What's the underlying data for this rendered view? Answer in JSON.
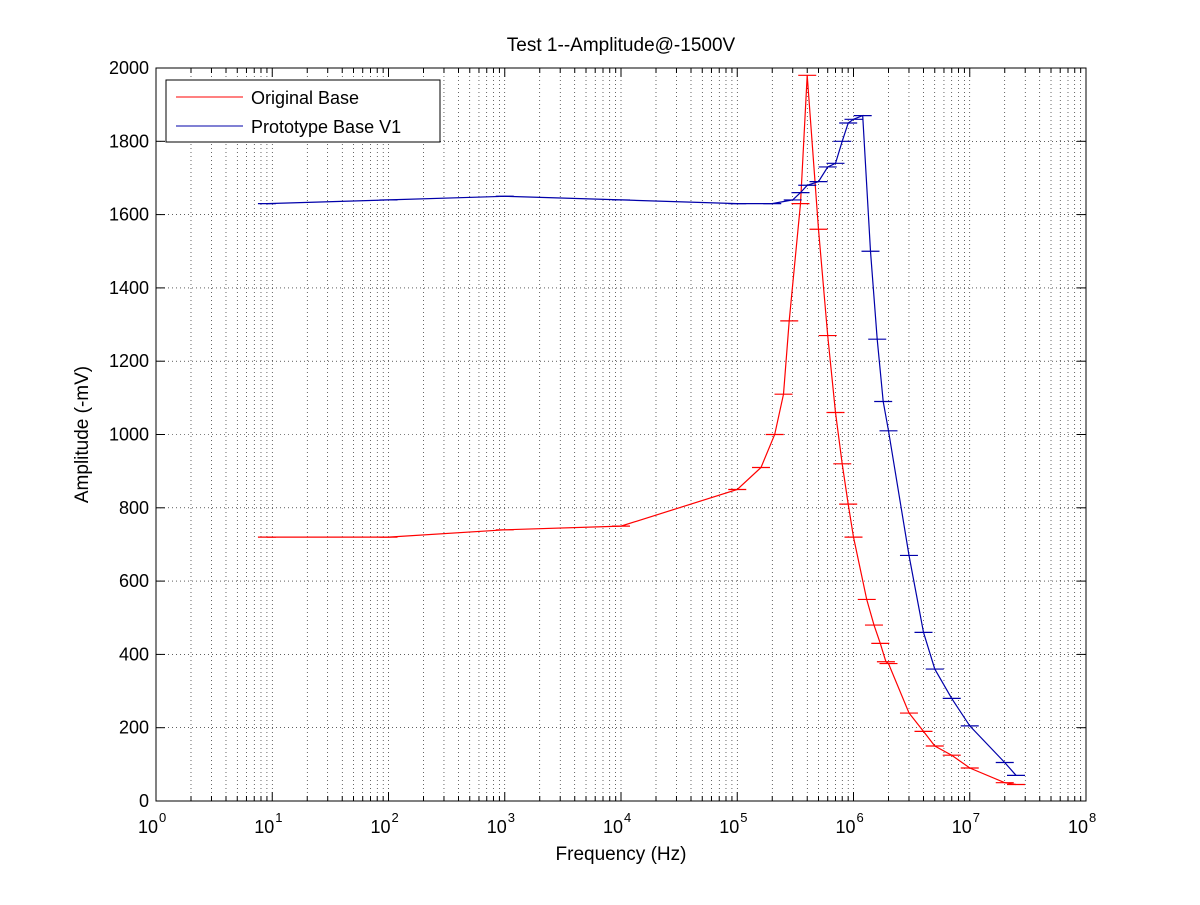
{
  "chart_data": {
    "type": "line",
    "title": "Test 1--Amplitude@-1500V",
    "xlabel": "Frequency (Hz)",
    "ylabel": "Amplitude (-mV)",
    "xscale": "log",
    "xlim": [
      1,
      100000000
    ],
    "ylim": [
      0,
      2000
    ],
    "grid": true,
    "legend_position": "top-left",
    "x_ticks": [
      {
        "base": "10",
        "exp": "0"
      },
      {
        "base": "10",
        "exp": "1"
      },
      {
        "base": "10",
        "exp": "2"
      },
      {
        "base": "10",
        "exp": "3"
      },
      {
        "base": "10",
        "exp": "4"
      },
      {
        "base": "10",
        "exp": "5"
      },
      {
        "base": "10",
        "exp": "6"
      },
      {
        "base": "10",
        "exp": "7"
      },
      {
        "base": "10",
        "exp": "8"
      }
    ],
    "y_ticks": [
      "0",
      "200",
      "400",
      "600",
      "800",
      "1000",
      "1200",
      "1400",
      "1600",
      "1800",
      "2000"
    ],
    "series": [
      {
        "name": "Original Base",
        "color": "#ff0000",
        "x": [
          9,
          100,
          1000,
          10000,
          100000,
          160000,
          210000,
          250000,
          280000,
          350000,
          400000,
          500000,
          600000,
          700000,
          800000,
          900000,
          1000000,
          1300000,
          1500000,
          1700000,
          1900000,
          2000000,
          3000000,
          4000000,
          5000000,
          7000000,
          10000000,
          20000000,
          25000000
        ],
        "y": [
          720,
          720,
          740,
          750,
          850,
          910,
          1000,
          1110,
          1310,
          1630,
          1980,
          1560,
          1270,
          1060,
          920,
          810,
          720,
          550,
          480,
          430,
          380,
          375,
          240,
          190,
          150,
          125,
          90,
          50,
          45
        ]
      },
      {
        "name": "Prototype Base V1",
        "color": "#0000aa",
        "x": [
          9,
          100,
          1000,
          10000,
          100000,
          200000,
          300000,
          350000,
          400000,
          500000,
          600000,
          700000,
          800000,
          900000,
          1000000,
          1200000,
          1400000,
          1600000,
          1800000,
          2000000,
          3000000,
          4000000,
          5000000,
          7000000,
          10000000,
          20000000,
          25000000
        ],
        "y": [
          1630,
          1640,
          1650,
          1640,
          1630,
          1630,
          1640,
          1660,
          1680,
          1690,
          1730,
          1740,
          1800,
          1850,
          1860,
          1870,
          1500,
          1260,
          1090,
          1010,
          670,
          460,
          360,
          280,
          205,
          105,
          70
        ]
      }
    ]
  }
}
